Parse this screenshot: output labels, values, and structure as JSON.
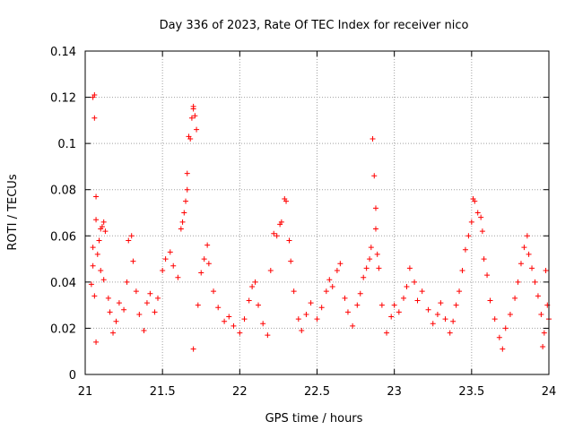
{
  "chart_data": {
    "type": "scatter",
    "title": "Day 336 of 2023, Rate Of TEC Index for receiver nico",
    "xlabel": "GPS time / hours",
    "ylabel": "ROTI / TECUs",
    "xlim": [
      21,
      24
    ],
    "ylim": [
      0,
      0.14
    ],
    "xticks": [
      21,
      21.5,
      22,
      22.5,
      23,
      23.5,
      24
    ],
    "xtick_labels": [
      "21",
      "21.5",
      "22",
      "22.5",
      "23",
      "23.5",
      "24"
    ],
    "yticks": [
      0,
      0.02,
      0.04,
      0.06,
      0.08,
      0.1,
      0.12,
      0.14
    ],
    "ytick_labels": [
      "0",
      "0.02",
      "0.04",
      "0.06",
      "0.08",
      "0.1",
      "0.12",
      "0.14"
    ],
    "grid": true,
    "marker": "+",
    "series": [
      {
        "name": "ROTI",
        "color": "#ff0000",
        "points": [
          [
            21.05,
            0.12
          ],
          [
            21.06,
            0.121
          ],
          [
            21.06,
            0.111
          ],
          [
            21.07,
            0.077
          ],
          [
            21.07,
            0.067
          ],
          [
            21.05,
            0.055
          ],
          [
            21.05,
            0.047
          ],
          [
            21.04,
            0.039
          ],
          [
            21.06,
            0.034
          ],
          [
            21.07,
            0.014
          ],
          [
            21.08,
            0.052
          ],
          [
            21.09,
            0.058
          ],
          [
            21.1,
            0.063
          ],
          [
            21.11,
            0.064
          ],
          [
            21.12,
            0.066
          ],
          [
            21.13,
            0.062
          ],
          [
            21.1,
            0.045
          ],
          [
            21.12,
            0.041
          ],
          [
            21.15,
            0.033
          ],
          [
            21.16,
            0.027
          ],
          [
            21.18,
            0.018
          ],
          [
            21.2,
            0.023
          ],
          [
            21.22,
            0.031
          ],
          [
            21.25,
            0.028
          ],
          [
            21.27,
            0.04
          ],
          [
            21.28,
            0.058
          ],
          [
            21.3,
            0.06
          ],
          [
            21.31,
            0.049
          ],
          [
            21.33,
            0.036
          ],
          [
            21.35,
            0.026
          ],
          [
            21.38,
            0.019
          ],
          [
            21.4,
            0.031
          ],
          [
            21.42,
            0.035
          ],
          [
            21.45,
            0.027
          ],
          [
            21.47,
            0.033
          ],
          [
            21.5,
            0.045
          ],
          [
            21.52,
            0.05
          ],
          [
            21.55,
            0.053
          ],
          [
            21.57,
            0.047
          ],
          [
            21.6,
            0.042
          ],
          [
            21.62,
            0.063
          ],
          [
            21.63,
            0.066
          ],
          [
            21.64,
            0.07
          ],
          [
            21.65,
            0.075
          ],
          [
            21.66,
            0.087
          ],
          [
            21.66,
            0.08
          ],
          [
            21.67,
            0.103
          ],
          [
            21.68,
            0.102
          ],
          [
            21.69,
            0.111
          ],
          [
            21.7,
            0.116
          ],
          [
            21.7,
            0.115
          ],
          [
            21.71,
            0.112
          ],
          [
            21.72,
            0.106
          ],
          [
            21.7,
            0.011
          ],
          [
            21.73,
            0.03
          ],
          [
            21.75,
            0.044
          ],
          [
            21.77,
            0.05
          ],
          [
            21.79,
            0.056
          ],
          [
            21.8,
            0.048
          ],
          [
            21.83,
            0.036
          ],
          [
            21.86,
            0.029
          ],
          [
            21.9,
            0.023
          ],
          [
            21.93,
            0.025
          ],
          [
            21.96,
            0.021
          ],
          [
            22.0,
            0.018
          ],
          [
            22.03,
            0.024
          ],
          [
            22.06,
            0.032
          ],
          [
            22.08,
            0.038
          ],
          [
            22.1,
            0.04
          ],
          [
            22.12,
            0.03
          ],
          [
            22.15,
            0.022
          ],
          [
            22.18,
            0.017
          ],
          [
            22.2,
            0.045
          ],
          [
            22.22,
            0.061
          ],
          [
            22.24,
            0.06
          ],
          [
            22.26,
            0.065
          ],
          [
            22.27,
            0.066
          ],
          [
            22.29,
            0.076
          ],
          [
            22.3,
            0.075
          ],
          [
            22.32,
            0.058
          ],
          [
            22.33,
            0.049
          ],
          [
            22.35,
            0.036
          ],
          [
            22.38,
            0.024
          ],
          [
            22.4,
            0.019
          ],
          [
            22.43,
            0.026
          ],
          [
            22.46,
            0.031
          ],
          [
            22.5,
            0.024
          ],
          [
            22.53,
            0.029
          ],
          [
            22.56,
            0.036
          ],
          [
            22.58,
            0.041
          ],
          [
            22.6,
            0.038
          ],
          [
            22.63,
            0.045
          ],
          [
            22.65,
            0.048
          ],
          [
            22.68,
            0.033
          ],
          [
            22.7,
            0.027
          ],
          [
            22.73,
            0.021
          ],
          [
            22.76,
            0.03
          ],
          [
            22.78,
            0.035
          ],
          [
            22.8,
            0.042
          ],
          [
            22.82,
            0.046
          ],
          [
            22.84,
            0.05
          ],
          [
            22.85,
            0.055
          ],
          [
            22.86,
            0.102
          ],
          [
            22.87,
            0.086
          ],
          [
            22.88,
            0.072
          ],
          [
            22.88,
            0.063
          ],
          [
            22.89,
            0.052
          ],
          [
            22.9,
            0.046
          ],
          [
            22.92,
            0.03
          ],
          [
            22.95,
            0.018
          ],
          [
            22.98,
            0.025
          ],
          [
            23.0,
            0.03
          ],
          [
            23.03,
            0.027
          ],
          [
            23.06,
            0.033
          ],
          [
            23.08,
            0.038
          ],
          [
            23.1,
            0.046
          ],
          [
            23.13,
            0.04
          ],
          [
            23.15,
            0.032
          ],
          [
            23.18,
            0.036
          ],
          [
            23.22,
            0.028
          ],
          [
            23.25,
            0.022
          ],
          [
            23.28,
            0.026
          ],
          [
            23.3,
            0.031
          ],
          [
            23.33,
            0.024
          ],
          [
            23.36,
            0.018
          ],
          [
            23.38,
            0.023
          ],
          [
            23.4,
            0.03
          ],
          [
            23.42,
            0.036
          ],
          [
            23.44,
            0.045
          ],
          [
            23.46,
            0.054
          ],
          [
            23.48,
            0.06
          ],
          [
            23.5,
            0.066
          ],
          [
            23.51,
            0.076
          ],
          [
            23.52,
            0.075
          ],
          [
            23.54,
            0.07
          ],
          [
            23.56,
            0.068
          ],
          [
            23.57,
            0.062
          ],
          [
            23.58,
            0.05
          ],
          [
            23.6,
            0.043
          ],
          [
            23.62,
            0.032
          ],
          [
            23.65,
            0.024
          ],
          [
            23.68,
            0.016
          ],
          [
            23.7,
            0.011
          ],
          [
            23.72,
            0.02
          ],
          [
            23.75,
            0.026
          ],
          [
            23.78,
            0.033
          ],
          [
            23.8,
            0.04
          ],
          [
            23.82,
            0.048
          ],
          [
            23.84,
            0.055
          ],
          [
            23.86,
            0.06
          ],
          [
            23.87,
            0.052
          ],
          [
            23.89,
            0.046
          ],
          [
            23.91,
            0.04
          ],
          [
            23.93,
            0.034
          ],
          [
            23.95,
            0.026
          ],
          [
            23.96,
            0.012
          ],
          [
            23.97,
            0.018
          ],
          [
            23.98,
            0.045
          ],
          [
            23.99,
            0.03
          ],
          [
            24.0,
            0.024
          ]
        ]
      }
    ]
  }
}
